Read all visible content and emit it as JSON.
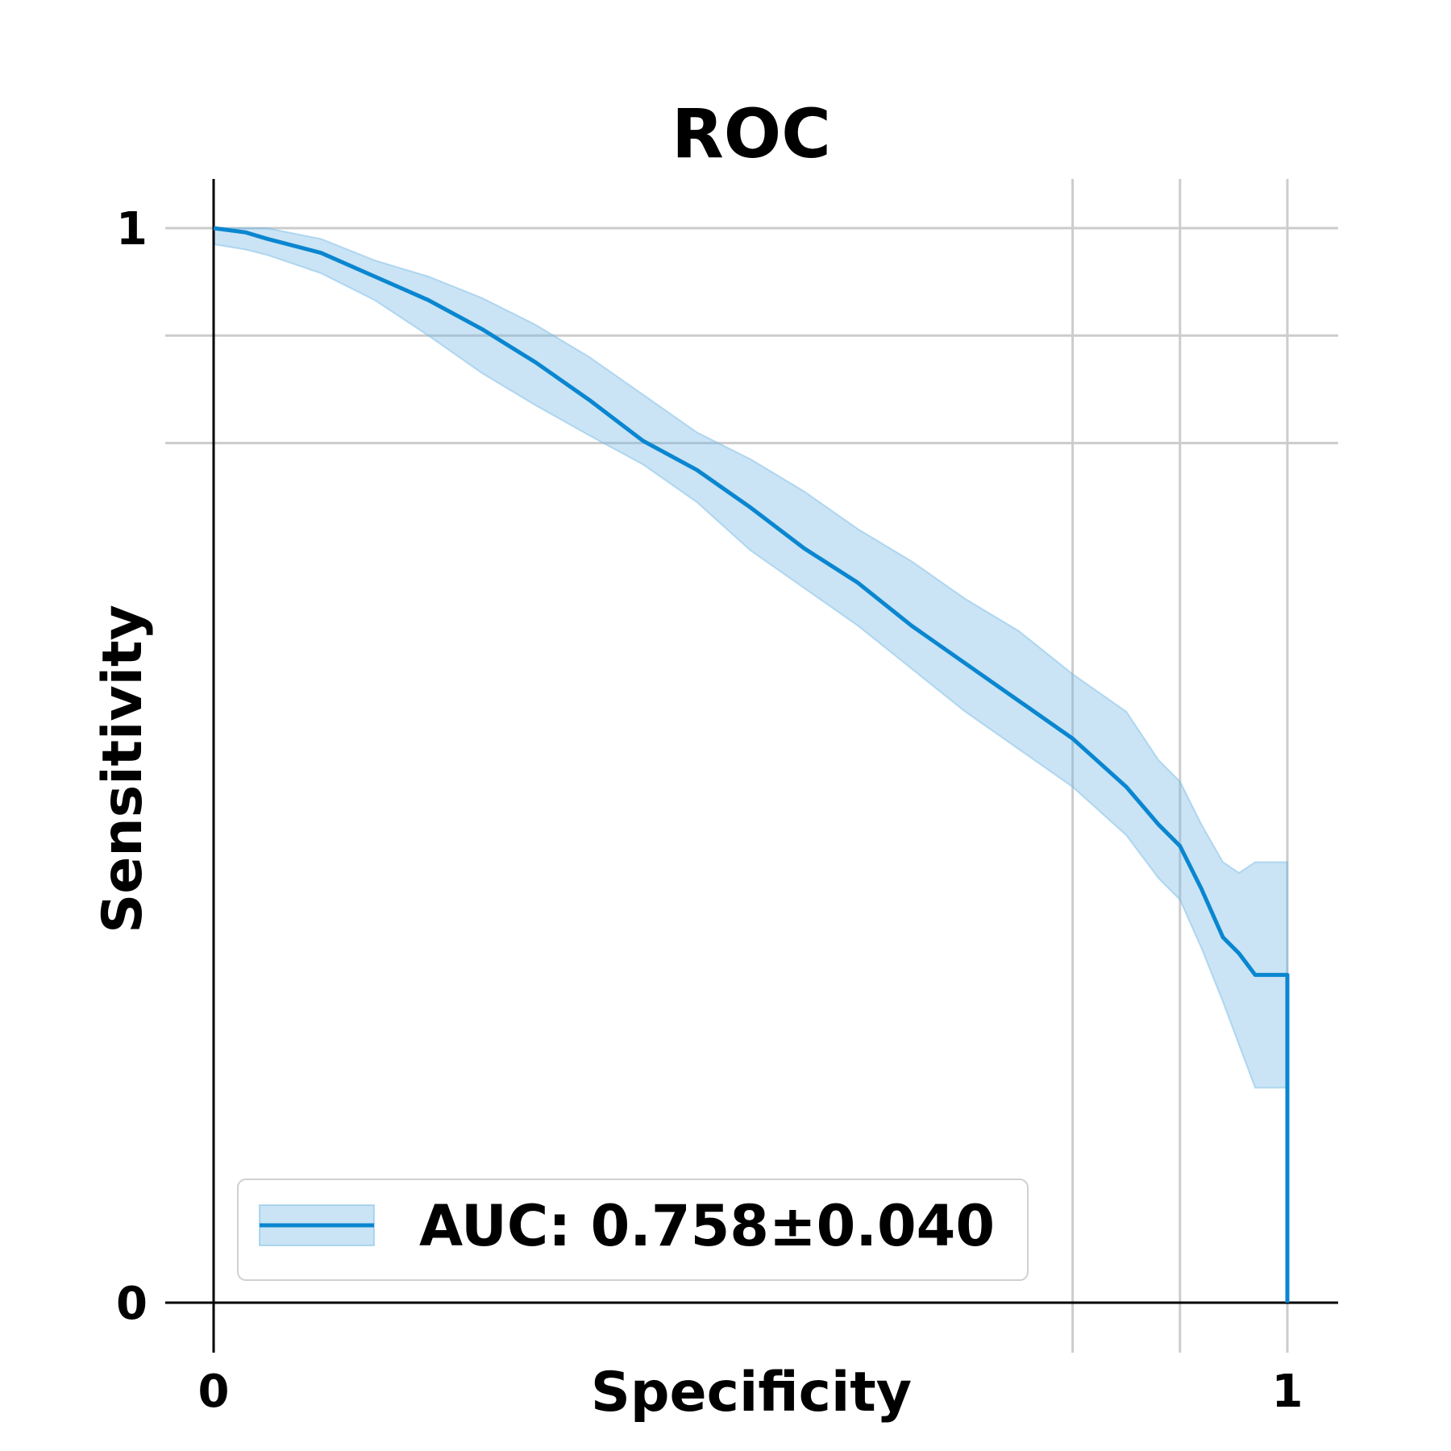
{
  "chart_data": {
    "type": "line",
    "title": "ROC",
    "xlabel": "Specificity",
    "ylabel": "Sensitivity",
    "xlim": [
      0,
      1
    ],
    "ylim": [
      0,
      1
    ],
    "x_ticks": [
      {
        "value": 0,
        "label": "0"
      },
      {
        "value": 1,
        "label": "1"
      }
    ],
    "y_ticks": [
      {
        "value": 0,
        "label": "0"
      },
      {
        "value": 1,
        "label": "1"
      }
    ],
    "x_gridlines": [
      0.8,
      0.9,
      1.0
    ],
    "y_gridlines": [
      0.8,
      0.9,
      1.0
    ],
    "grid": true,
    "legend_placement": "lower-left",
    "colors": {
      "line": "#0a86d0",
      "band": "#74b9e4",
      "grid": "#cccccc",
      "axis": "#000000"
    },
    "series": [
      {
        "name": "AUC: 0.758±0.040",
        "x": [
          0,
          0.03,
          0.05,
          0.1,
          0.15,
          0.2,
          0.25,
          0.3,
          0.35,
          0.4,
          0.45,
          0.5,
          0.55,
          0.6,
          0.65,
          0.7,
          0.75,
          0.8,
          0.85,
          0.88,
          0.9,
          0.92,
          0.94,
          0.955,
          0.97,
          0.975,
          1.0,
          1.0
        ],
        "y": [
          1.0,
          0.996,
          0.99,
          0.977,
          0.955,
          0.933,
          0.906,
          0.875,
          0.84,
          0.802,
          0.775,
          0.74,
          0.702,
          0.67,
          0.63,
          0.595,
          0.56,
          0.525,
          0.48,
          0.445,
          0.425,
          0.385,
          0.34,
          0.325,
          0.305,
          0.305,
          0.305,
          0.0
        ],
        "lower": [
          0.985,
          0.98,
          0.975,
          0.958,
          0.933,
          0.9,
          0.865,
          0.835,
          0.807,
          0.78,
          0.745,
          0.7,
          0.665,
          0.63,
          0.59,
          0.55,
          0.515,
          0.48,
          0.435,
          0.395,
          0.375,
          0.33,
          0.28,
          0.24,
          0.2,
          0.2,
          0.2,
          0.2
        ],
        "upper": [
          1.0,
          1.0,
          1.0,
          0.99,
          0.97,
          0.955,
          0.935,
          0.91,
          0.88,
          0.845,
          0.81,
          0.785,
          0.755,
          0.72,
          0.69,
          0.655,
          0.625,
          0.585,
          0.55,
          0.505,
          0.485,
          0.445,
          0.41,
          0.4,
          0.41,
          0.41,
          0.41,
          0.41
        ]
      }
    ]
  },
  "legend": {
    "label": "AUC: 0.758±0.040"
  }
}
